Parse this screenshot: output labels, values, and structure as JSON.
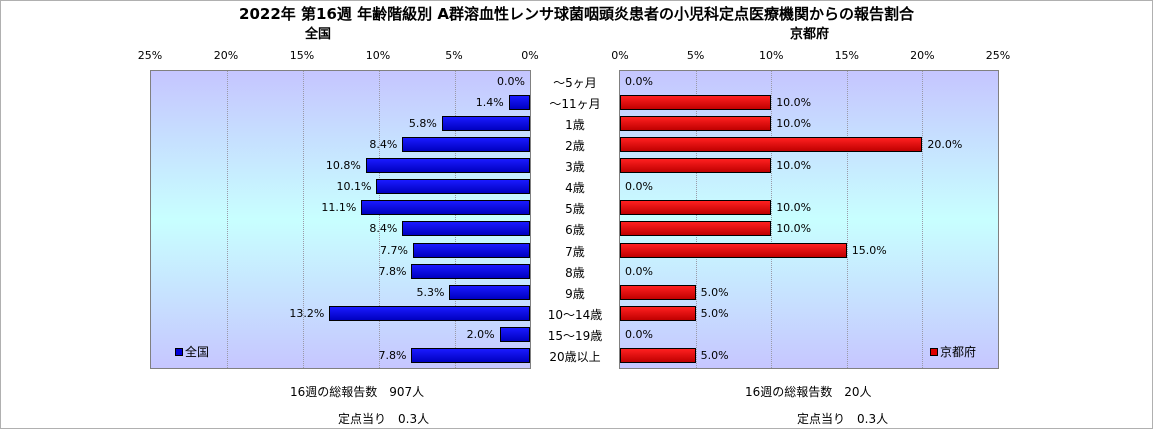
{
  "title": "2022年 第16週 年齢階級別 A群溶血性レンサ球菌咽頭炎患者の小児科定点医療機関からの報告割合",
  "left_panel": {
    "heading": "全国",
    "legend": "全国",
    "color": "#0000d8"
  },
  "right_panel": {
    "heading": "京都府",
    "legend": "京都府",
    "color": "#e00000"
  },
  "axis_ticks_left": [
    "25%",
    "20%",
    "15%",
    "10%",
    "5%",
    "0%"
  ],
  "axis_ticks_right": [
    "0%",
    "5%",
    "10%",
    "15%",
    "20%",
    "25%"
  ],
  "footer": {
    "left_total": "16週の総報告数　907人",
    "left_per": "定点当り　0.3人",
    "right_total": "16週の総報告数　20人",
    "right_per": "定点当り　0.3人"
  },
  "chart_data": {
    "type": "bar",
    "orientation": "horizontal-butterfly",
    "xlim": [
      0,
      25
    ],
    "categories": [
      "～5ヶ月",
      "～11ヶ月",
      "1歳",
      "2歳",
      "3歳",
      "4歳",
      "5歳",
      "6歳",
      "7歳",
      "8歳",
      "9歳",
      "10～14歳",
      "15～19歳",
      "20歳以上"
    ],
    "series": [
      {
        "name": "全国",
        "values": [
          0.0,
          1.4,
          5.8,
          8.4,
          10.8,
          10.1,
          11.1,
          8.4,
          7.7,
          7.8,
          5.3,
          13.2,
          2.0,
          7.8
        ],
        "labels": [
          "0.0%",
          "1.4%",
          "5.8%",
          "8.4%",
          "10.8%",
          "10.1%",
          "11.1%",
          "8.4%",
          "7.7%",
          "7.8%",
          "5.3%",
          "13.2%",
          "2.0%",
          "7.8%"
        ]
      },
      {
        "name": "京都府",
        "values": [
          0.0,
          10.0,
          10.0,
          20.0,
          10.0,
          0.0,
          10.0,
          10.0,
          15.0,
          0.0,
          5.0,
          5.0,
          0.0,
          5.0
        ],
        "labels": [
          "0.0%",
          "10.0%",
          "10.0%",
          "20.0%",
          "10.0%",
          "0.0%",
          "10.0%",
          "10.0%",
          "15.0%",
          "0.0%",
          "5.0%",
          "5.0%",
          "0.0%",
          "5.0%"
        ]
      }
    ]
  }
}
